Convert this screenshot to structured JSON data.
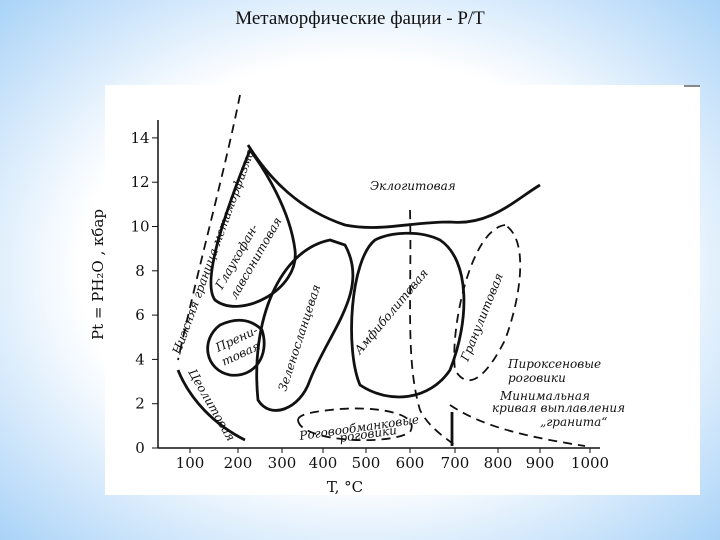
{
  "title": "Метаморфические фации - P/T",
  "diagram": {
    "x_axis": {
      "label": "T, °C",
      "ticks": [
        "100",
        "200",
        "300",
        "400",
        "500",
        "600",
        "700",
        "800",
        "900",
        "1000"
      ]
    },
    "y_axis": {
      "label": "Pt = PH₂O , кбар",
      "ticks": [
        "0",
        "2",
        "4",
        "6",
        "8",
        "10",
        "12",
        "14"
      ]
    },
    "labels": {
      "lower_boundary": "Нижняя граница метаморфизма",
      "eclogite": "Эклогитовая",
      "glaucophane": [
        "Глаукофан-",
        "лавсонитовая"
      ],
      "prehnite": [
        "Прени-",
        "товая"
      ],
      "zeolite": "Цеолитовая",
      "greenschist": "Зеленосланцевая",
      "amphibolite": "Амфиболитовая",
      "granulite": "Гранулитовая",
      "hornblende_hornfels": [
        "Роговообманковые",
        "роговики"
      ],
      "pyroxene_hornfels": [
        "Пироксеновые",
        "роговики"
      ],
      "granite_melting": [
        "Минимальная",
        "кривая выплавления",
        "„гранита“"
      ]
    }
  }
}
